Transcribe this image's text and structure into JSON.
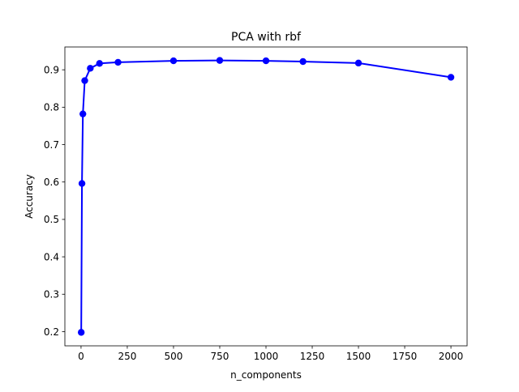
{
  "chart_data": {
    "type": "line",
    "title": "PCA with rbf",
    "xlabel": "n_components",
    "ylabel": "Accuracy",
    "xlim": [
      -87.4,
      2087.4
    ],
    "ylim": [
      0.162,
      0.961
    ],
    "grid": false,
    "x_ticks": [
      {
        "value": 0,
        "label": "0"
      },
      {
        "value": 250,
        "label": "250"
      },
      {
        "value": 500,
        "label": "500"
      },
      {
        "value": 750,
        "label": "750"
      },
      {
        "value": 1000,
        "label": "1000"
      },
      {
        "value": 1250,
        "label": "1250"
      },
      {
        "value": 1500,
        "label": "1500"
      },
      {
        "value": 1750,
        "label": "1750"
      },
      {
        "value": 2000,
        "label": "2000"
      }
    ],
    "y_ticks": [
      {
        "value": 0.2,
        "label": "0.2"
      },
      {
        "value": 0.3,
        "label": "0.3"
      },
      {
        "value": 0.4,
        "label": "0.4"
      },
      {
        "value": 0.5,
        "label": "0.5"
      },
      {
        "value": 0.6,
        "label": "0.6"
      },
      {
        "value": 0.7,
        "label": "0.7"
      },
      {
        "value": 0.8,
        "label": "0.8"
      },
      {
        "value": 0.9,
        "label": "0.9"
      }
    ],
    "series": [
      {
        "color": "#0000ff",
        "marker": "circle",
        "x": [
          1,
          5,
          10,
          20,
          50,
          100,
          200,
          500,
          750,
          1000,
          1200,
          1500,
          2000
        ],
        "y": [
          0.198,
          0.596,
          0.782,
          0.871,
          0.904,
          0.917,
          0.92,
          0.924,
          0.925,
          0.924,
          0.922,
          0.918,
          0.88
        ]
      }
    ]
  }
}
